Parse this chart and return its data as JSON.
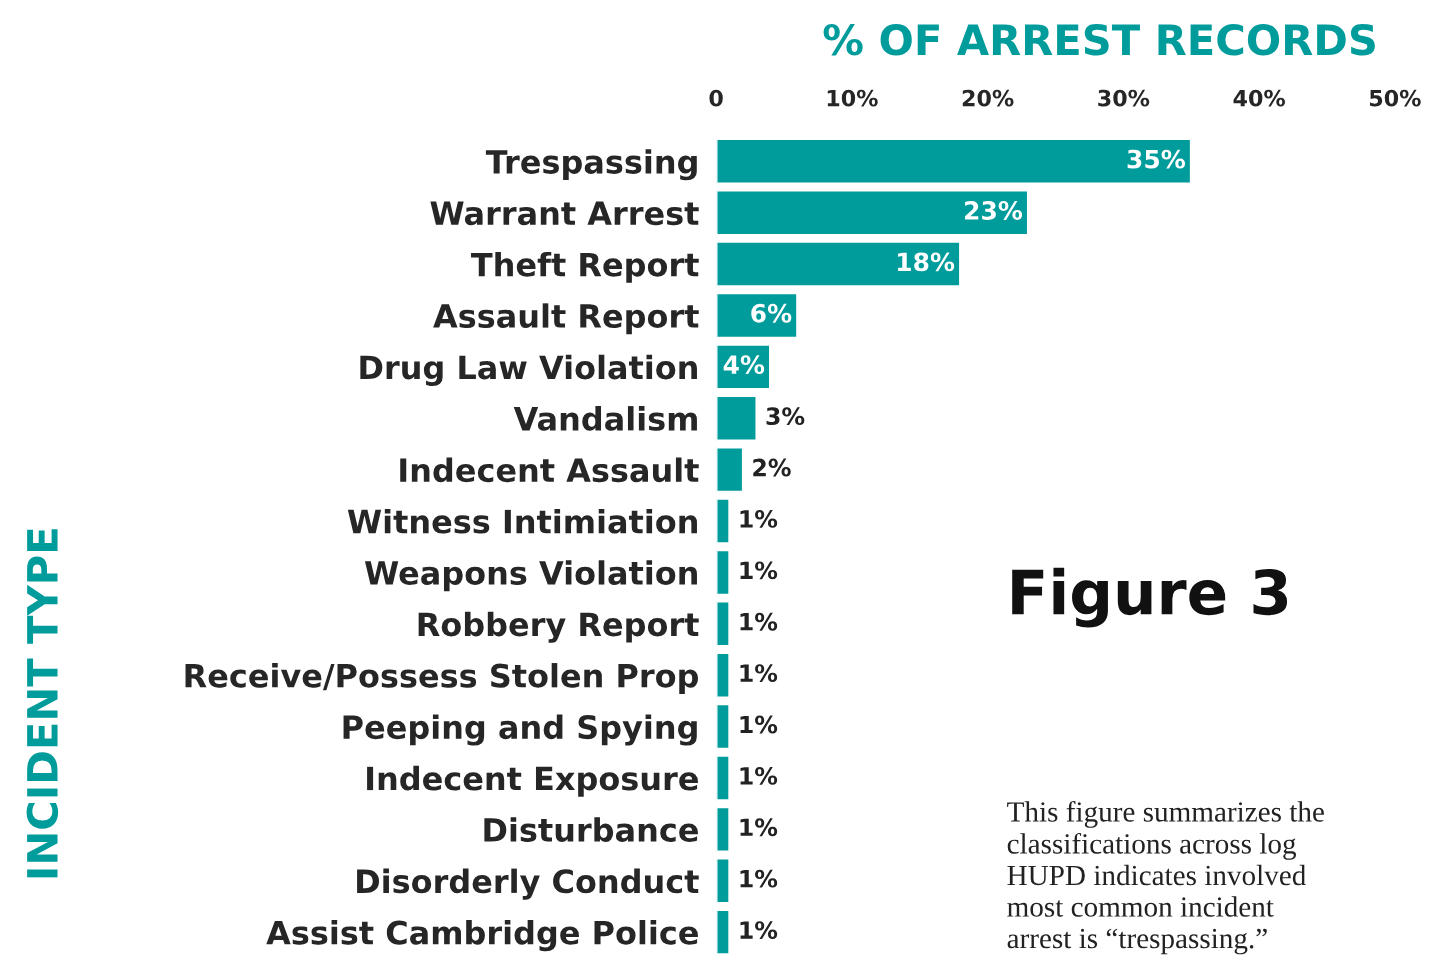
{
  "chart_data": {
    "type": "bar",
    "orientation": "horizontal",
    "title": "% OF ARREST RECORDS",
    "ylabel": "INCIDENT TYPE",
    "categories": [
      "Trespassing",
      "Warrant Arrest",
      "Theft Report",
      "Assault Report",
      "Drug Law Violation",
      "Vandalism",
      "Indecent Assault",
      "Witness Intimiation",
      "Weapons Violation",
      "Robbery Report",
      "Receive/Possess Stolen Prop",
      "Peeping and Spying",
      "Indecent Exposure",
      "Disturbance",
      "Disorderly Conduct",
      "Assist Cambridge Police"
    ],
    "values": [
      35,
      23,
      18,
      6,
      4,
      3,
      2,
      1,
      1,
      1,
      1,
      1,
      1,
      1,
      1,
      1
    ],
    "color": "#009b9b",
    "xlim": [
      0,
      50
    ],
    "xticks": [
      0,
      {
        "value": 10,
        "label": "10%"
      },
      {
        "value": 20,
        "label": "20%"
      },
      {
        "value": 30,
        "label": "30%"
      },
      {
        "value": 40,
        "label": "40%"
      },
      {
        "value": 50,
        "label": "50%"
      }
    ],
    "value_labels": [
      "35%",
      "23%",
      "18%",
      "6%",
      "4%",
      "3%",
      "2%",
      "1%",
      "1%",
      "1%",
      "1%",
      "1%",
      "1%",
      "1%",
      "1%",
      "1%"
    ],
    "grid": false,
    "legend": false,
    "annotations": [
      "Figure 3",
      "This figure summarizes the\nclassifications across log\nHUPD indicates involved\nmost common incident\narrest is “trespassing.”"
    ]
  }
}
